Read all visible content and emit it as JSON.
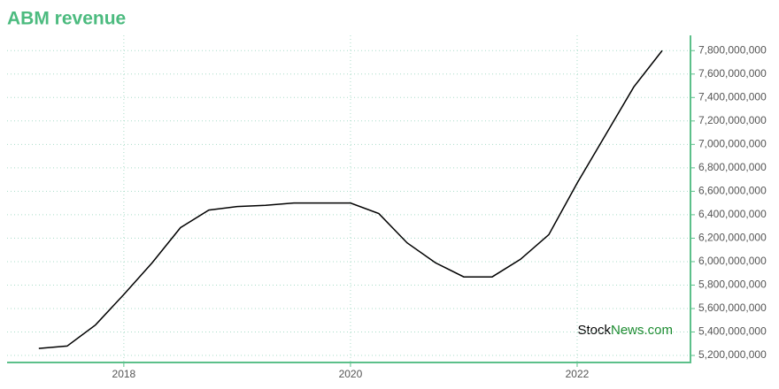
{
  "chart_data": {
    "type": "line",
    "title": "ABM revenue",
    "watermark": {
      "prefix": "Stock",
      "suffix": "News.com"
    },
    "x": [
      2017.25,
      2017.5,
      2017.75,
      2018,
      2018.25,
      2018.5,
      2018.75,
      2019,
      2019.25,
      2019.5,
      2019.75,
      2020,
      2020.25,
      2020.5,
      2020.75,
      2021,
      2021.25,
      2021.5,
      2021.75,
      2022,
      2022.25,
      2022.5,
      2022.75
    ],
    "series": [
      {
        "name": "Revenue",
        "color": "#000000",
        "values": [
          5260000000,
          5280000000,
          5460000000,
          5720000000,
          5990000000,
          6290000000,
          6440000000,
          6470000000,
          6480000000,
          6500000000,
          6500000000,
          6500000000,
          6410000000,
          6160000000,
          5990000000,
          5870000000,
          5870000000,
          6020000000,
          6230000000,
          6670000000,
          7080000000,
          7490000000,
          7800000000
        ]
      }
    ],
    "xlim": [
      2016.97,
      2023
    ],
    "xticks": [
      2018,
      2020,
      2022
    ],
    "ylim": [
      5140000000,
      7930000000
    ],
    "yticks": [
      {
        "value": 5200000000,
        "label": "5,200,000,000"
      },
      {
        "value": 5400000000,
        "label": "5,400,000,000"
      },
      {
        "value": 5600000000,
        "label": "5,600,000,000"
      },
      {
        "value": 5800000000,
        "label": "5,800,000,000"
      },
      {
        "value": 6000000000,
        "label": "6,000,000,000"
      },
      {
        "value": 6200000000,
        "label": "6,200,000,000"
      },
      {
        "value": 6400000000,
        "label": "6,400,000,000"
      },
      {
        "value": 6600000000,
        "label": "6,600,000,000"
      },
      {
        "value": 6800000000,
        "label": "6,800,000,000"
      },
      {
        "value": 7000000000,
        "label": "7,000,000,000"
      },
      {
        "value": 7200000000,
        "label": "7,200,000,000"
      },
      {
        "value": 7400000000,
        "label": "7,400,000,000"
      },
      {
        "value": 7600000000,
        "label": "7,600,000,000"
      },
      {
        "value": 7800000000,
        "label": "7,800,000,000"
      }
    ],
    "grid": true,
    "axis_color": "#5cc08a",
    "grid_color": "#a8dcc8"
  }
}
